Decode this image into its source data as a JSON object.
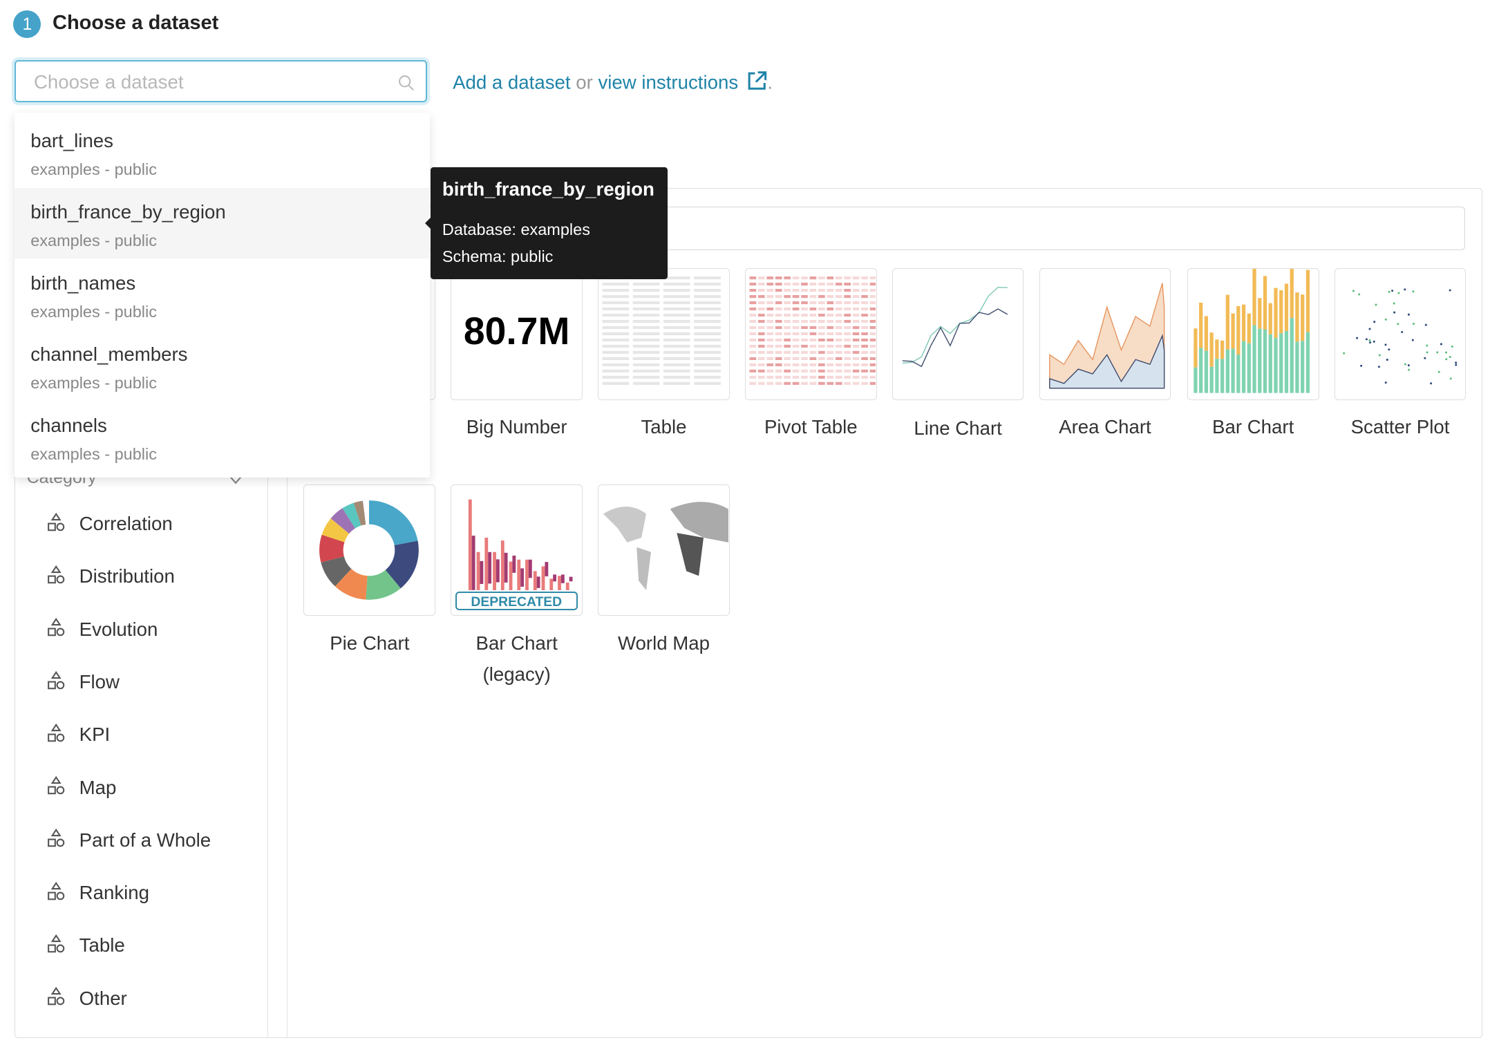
{
  "header": {
    "step_number": "1",
    "title": "Choose a dataset"
  },
  "dataset_select": {
    "placeholder": "Choose a dataset",
    "icon": "search-icon"
  },
  "links": {
    "add": "Add a dataset",
    "or": " or ",
    "view": "view instructions",
    "suffix": "."
  },
  "dropdown": {
    "options": [
      {
        "name": "bart_lines",
        "sub": "examples - public"
      },
      {
        "name": "birth_france_by_region",
        "sub": "examples - public",
        "highlighted": true
      },
      {
        "name": "birth_names",
        "sub": "examples - public"
      },
      {
        "name": "channel_members",
        "sub": "examples - public"
      },
      {
        "name": "channels",
        "sub": "examples - public"
      }
    ]
  },
  "tooltip": {
    "title": "birth_france_by_region",
    "database": "Database: examples",
    "schema": "Schema: public"
  },
  "sidebar": {
    "category_label": "Category",
    "items": [
      "Correlation",
      "Distribution",
      "Evolution",
      "Flow",
      "KPI",
      "Map",
      "Part of a Whole",
      "Ranking",
      "Table",
      "Other"
    ]
  },
  "charts": {
    "row1": [
      "Big Number",
      "Table",
      "Pivot Table",
      "Line Chart",
      "Area Chart",
      "Bar Chart",
      "Scatter Plot"
    ],
    "row2": [
      "Pie Chart",
      "Bar Chart (legacy)",
      "World Map"
    ],
    "big_number_value": "80.7M",
    "deprecated_badge": "DEPRECATED",
    "legacy_line1": "Bar Chart",
    "legacy_line2": "(legacy)"
  },
  "colors": {
    "accent": "#20a7c9",
    "link": "#1f83a8",
    "tooltip_bg": "#1c1c1c"
  }
}
